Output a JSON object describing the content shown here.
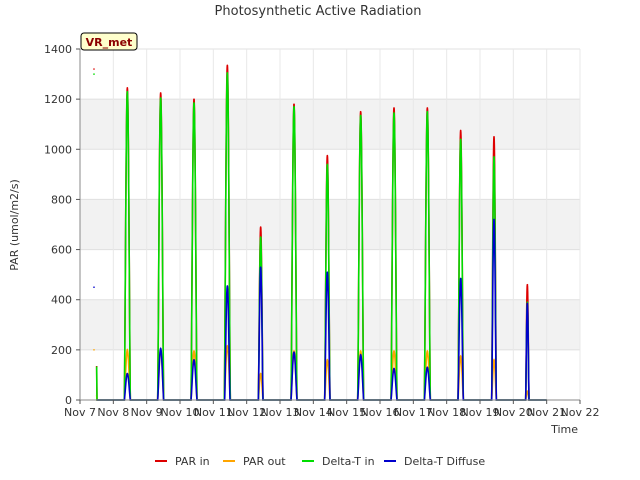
{
  "chart_data": {
    "type": "line",
    "title": "Photosynthetic Active Radiation",
    "xlabel": "Time",
    "ylabel": "PAR (umol/m2/s)",
    "badge": "VR_met",
    "ylim": [
      0,
      1400
    ],
    "yticks": [
      0,
      200,
      400,
      600,
      800,
      1000,
      1200,
      1400
    ],
    "xlim": [
      7,
      22
    ],
    "xticks": [
      {
        "v": 7,
        "label": "Nov 7"
      },
      {
        "v": 8,
        "label": "Nov 8"
      },
      {
        "v": 9,
        "label": "Nov 9"
      },
      {
        "v": 10,
        "label": "Nov 10"
      },
      {
        "v": 11,
        "label": "Nov 11"
      },
      {
        "v": 12,
        "label": "Nov 12"
      },
      {
        "v": 13,
        "label": "Nov 13"
      },
      {
        "v": 14,
        "label": "Nov 14"
      },
      {
        "v": 15,
        "label": "Nov 15"
      },
      {
        "v": 16,
        "label": "Nov 16"
      },
      {
        "v": 17,
        "label": "Nov 17"
      },
      {
        "v": 18,
        "label": "Nov 18"
      },
      {
        "v": 19,
        "label": "Nov 19"
      },
      {
        "v": 20,
        "label": "Nov 20"
      },
      {
        "v": 21,
        "label": "Nov 21"
      },
      {
        "v": 22,
        "label": "Nov 22"
      }
    ],
    "grid": true,
    "legend_position": "bottom",
    "series": [
      {
        "name": "PAR in",
        "color": "#dd0000",
        "days": [
          {
            "center": 7.42,
            "peak": 1320,
            "width": 0.09
          },
          {
            "center": 8.42,
            "peak": 1245,
            "width": 0.09
          },
          {
            "center": 9.42,
            "peak": 1225,
            "width": 0.09
          },
          {
            "center": 10.42,
            "peak": 1200,
            "width": 0.09
          },
          {
            "center": 11.42,
            "peak": 1335,
            "width": 0.09
          },
          {
            "center": 12.42,
            "peak": 690,
            "width": 0.07
          },
          {
            "center": 13.42,
            "peak": 1180,
            "width": 0.09
          },
          {
            "center": 14.42,
            "peak": 975,
            "width": 0.08
          },
          {
            "center": 15.42,
            "peak": 1150,
            "width": 0.09
          },
          {
            "center": 16.42,
            "peak": 1165,
            "width": 0.09
          },
          {
            "center": 17.42,
            "peak": 1165,
            "width": 0.09
          },
          {
            "center": 18.42,
            "peak": 1075,
            "width": 0.08
          },
          {
            "center": 19.42,
            "peak": 1050,
            "width": 0.07
          },
          {
            "center": 20.42,
            "peak": 460,
            "width": 0.05
          }
        ]
      },
      {
        "name": "PAR out",
        "color": "#ffa500",
        "days": [
          {
            "center": 7.42,
            "peak": 200,
            "width": 0.09
          },
          {
            "center": 8.42,
            "peak": 200,
            "width": 0.09
          },
          {
            "center": 9.42,
            "peak": 200,
            "width": 0.09
          },
          {
            "center": 10.42,
            "peak": 195,
            "width": 0.09
          },
          {
            "center": 11.42,
            "peak": 215,
            "width": 0.09
          },
          {
            "center": 12.42,
            "peak": 105,
            "width": 0.07
          },
          {
            "center": 13.42,
            "peak": 195,
            "width": 0.09
          },
          {
            "center": 14.42,
            "peak": 160,
            "width": 0.08
          },
          {
            "center": 15.42,
            "peak": 195,
            "width": 0.09
          },
          {
            "center": 16.42,
            "peak": 195,
            "width": 0.09
          },
          {
            "center": 17.42,
            "peak": 195,
            "width": 0.09
          },
          {
            "center": 18.42,
            "peak": 175,
            "width": 0.08
          },
          {
            "center": 19.42,
            "peak": 160,
            "width": 0.07
          },
          {
            "center": 20.42,
            "peak": 35,
            "width": 0.05
          }
        ]
      },
      {
        "name": "Delta-T in",
        "color": "#00dd00",
        "days": [
          {
            "center": 7.42,
            "peak": 1300,
            "width": 0.09
          },
          {
            "center": 8.42,
            "peak": 1230,
            "width": 0.09
          },
          {
            "center": 9.42,
            "peak": 1205,
            "width": 0.09
          },
          {
            "center": 10.42,
            "peak": 1185,
            "width": 0.09
          },
          {
            "center": 11.42,
            "peak": 1305,
            "width": 0.09
          },
          {
            "center": 12.42,
            "peak": 650,
            "width": 0.07
          },
          {
            "center": 13.42,
            "peak": 1170,
            "width": 0.09
          },
          {
            "center": 14.42,
            "peak": 940,
            "width": 0.08
          },
          {
            "center": 15.42,
            "peak": 1135,
            "width": 0.09
          },
          {
            "center": 16.42,
            "peak": 1145,
            "width": 0.09
          },
          {
            "center": 17.42,
            "peak": 1150,
            "width": 0.09
          },
          {
            "center": 18.42,
            "peak": 1040,
            "width": 0.08
          },
          {
            "center": 19.42,
            "peak": 970,
            "width": 0.07
          },
          {
            "center": 20.42,
            "peak": 390,
            "width": 0.05
          }
        ]
      },
      {
        "name": "Delta-T Diffuse",
        "color": "#0000cc",
        "days": [
          {
            "center": 7.42,
            "peak": 450,
            "width": 0.06
          },
          {
            "center": 8.42,
            "peak": 105,
            "width": 0.09
          },
          {
            "center": 9.42,
            "peak": 205,
            "width": 0.09
          },
          {
            "center": 10.42,
            "peak": 160,
            "width": 0.09
          },
          {
            "center": 11.42,
            "peak": 455,
            "width": 0.08
          },
          {
            "center": 12.42,
            "peak": 530,
            "width": 0.07
          },
          {
            "center": 13.42,
            "peak": 190,
            "width": 0.09
          },
          {
            "center": 14.42,
            "peak": 510,
            "width": 0.08
          },
          {
            "center": 15.42,
            "peak": 180,
            "width": 0.09
          },
          {
            "center": 16.42,
            "peak": 125,
            "width": 0.09
          },
          {
            "center": 17.42,
            "peak": 130,
            "width": 0.09
          },
          {
            "center": 18.42,
            "peak": 485,
            "width": 0.08
          },
          {
            "center": 19.42,
            "peak": 720,
            "width": 0.07
          },
          {
            "center": 20.42,
            "peak": 385,
            "width": 0.05
          }
        ]
      }
    ]
  }
}
